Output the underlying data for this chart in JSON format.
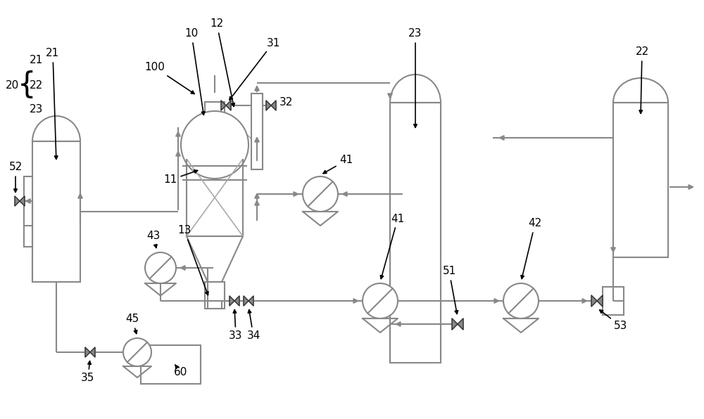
{
  "bg": "#ffffff",
  "lc": "#888888",
  "dc": "#333333",
  "lw": 1.5,
  "figsize": [
    10.0,
    5.96
  ],
  "dpi": 100
}
